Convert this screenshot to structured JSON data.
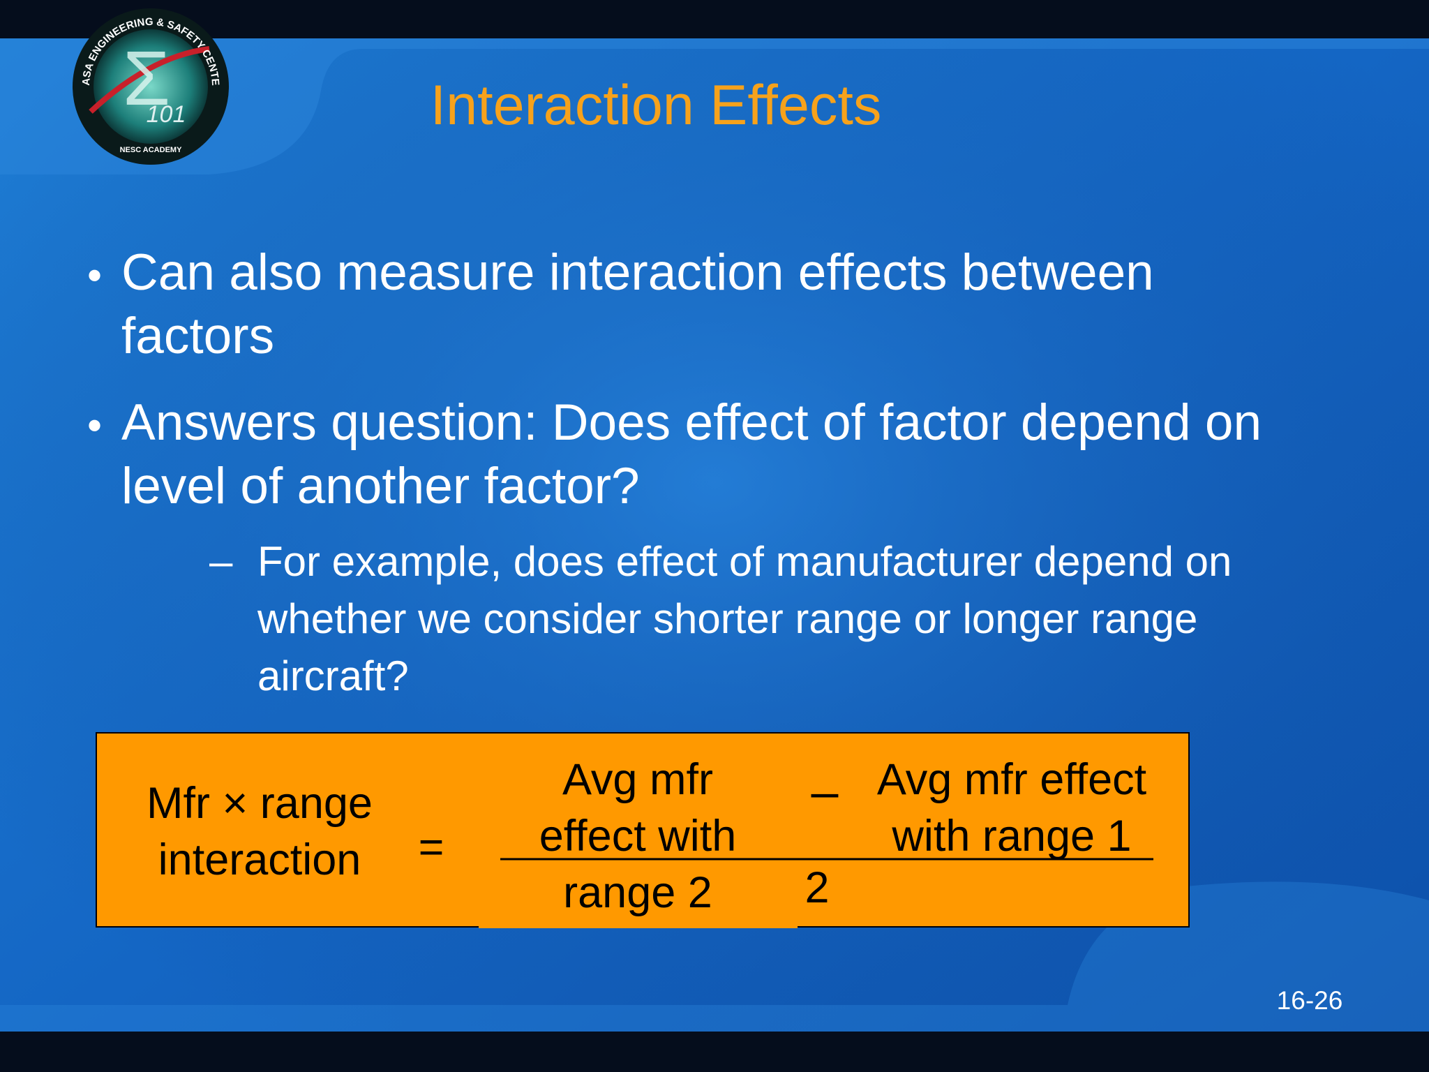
{
  "header": {
    "title": "Interaction Effects"
  },
  "logo": {
    "ring_text": "NASA ENGINEERING & SAFETY CENTER",
    "sub_text": "NESC ACADEMY",
    "number": "101"
  },
  "bullets": [
    {
      "marker": "•",
      "lines": [
        "Can also measure interaction effects between",
        "factors"
      ]
    },
    {
      "marker": "•",
      "lines": [
        "Answers question: Does effect of factor depend on",
        "level of another factor?"
      ]
    }
  ],
  "sub_bullet": {
    "marker": "–",
    "lines": [
      "For example, does effect of manufacturer depend on",
      "whether we consider shorter range or longer range",
      "aircraft?"
    ]
  },
  "formula": {
    "left": [
      "Mfr × range",
      "interaction"
    ],
    "equals": "=",
    "term_a": [
      "Avg mfr",
      "effect with",
      "range 2"
    ],
    "minus": "–",
    "term_b": [
      "Avg mfr effect",
      "with range 1"
    ],
    "denominator": "2"
  },
  "footer": {
    "page_number": "16-26"
  }
}
